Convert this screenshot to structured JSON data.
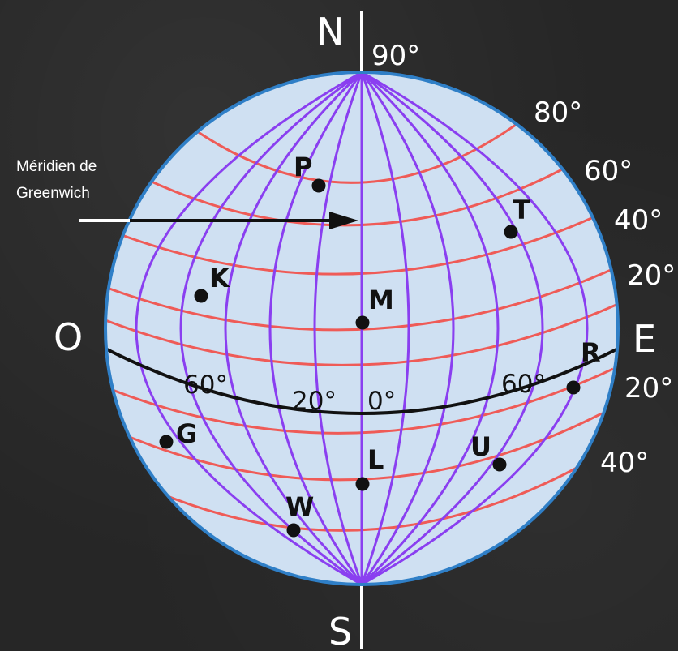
{
  "colors": {
    "background": "#262626",
    "globe_fill": "#cfe0f2",
    "globe_outline": "#2f7fc7",
    "meridian": "#8a3ff0",
    "parallel": "#ef5b57",
    "equator": "#111111",
    "axis": "#ffffff"
  },
  "cardinals": {
    "north": "N",
    "south": "S",
    "west": "O",
    "east": "E"
  },
  "latitude_labels": {
    "pole": "90°",
    "n80": "80°",
    "n60": "60°",
    "n40": "40°",
    "n20": "20°",
    "s20": "20°",
    "s40": "40°"
  },
  "longitude_labels": {
    "w60": "60°",
    "w20": "20°",
    "zero": "0°",
    "e60": "60°"
  },
  "greenwich_note": {
    "line1": "Méridien de",
    "line2": "Greenwich"
  },
  "points": [
    {
      "label": "P"
    },
    {
      "label": "T"
    },
    {
      "label": "K"
    },
    {
      "label": "M"
    },
    {
      "label": "R"
    },
    {
      "label": "G"
    },
    {
      "label": "L"
    },
    {
      "label": "U"
    },
    {
      "label": "W"
    }
  ]
}
